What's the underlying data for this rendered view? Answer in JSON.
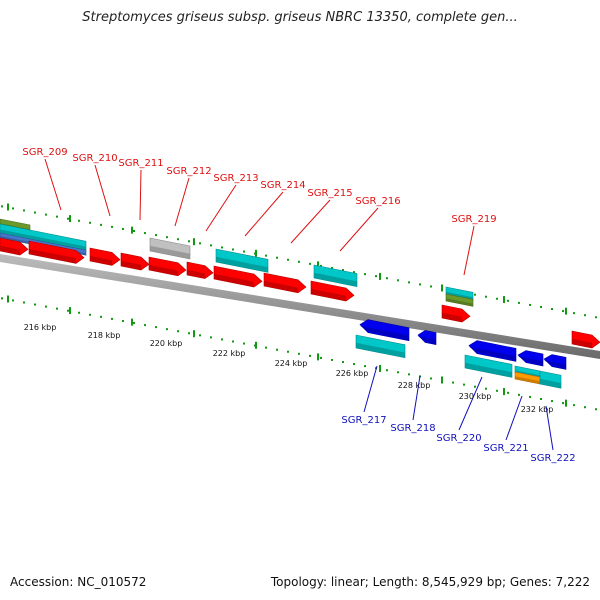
{
  "title": "Streptomyces griseus subsp. griseus NBRC 13350, complete gen...",
  "accession": "Accession: NC_010572",
  "topology": "Topology: linear; Length: 8,545,929 bp; Genes: 7,222",
  "colors": {
    "cds": "#ff0000",
    "rna": "#00c8c8",
    "misc": "#c0c0c0",
    "reverse": "#0000ee",
    "tick": "#119911",
    "backbone": "#888888",
    "label_forward": "#dd1111",
    "label_reverse": "#1111bb"
  },
  "scale_labels": [
    "216 kbp",
    "218 kbp",
    "220 kbp",
    "222 kbp",
    "224 kbp",
    "226 kbp",
    "228 kbp",
    "230 kbp",
    "232 kbp"
  ],
  "forward_labels": [
    "SGR_209",
    "SGR_210",
    "SGR_211",
    "SGR_212",
    "SGR_213",
    "SGR_214",
    "SGR_215",
    "SGR_216",
    "SGR_219"
  ],
  "reverse_labels": [
    "SGR_217",
    "SGR_218",
    "SGR_220",
    "SGR_221",
    "SGR_222"
  ]
}
